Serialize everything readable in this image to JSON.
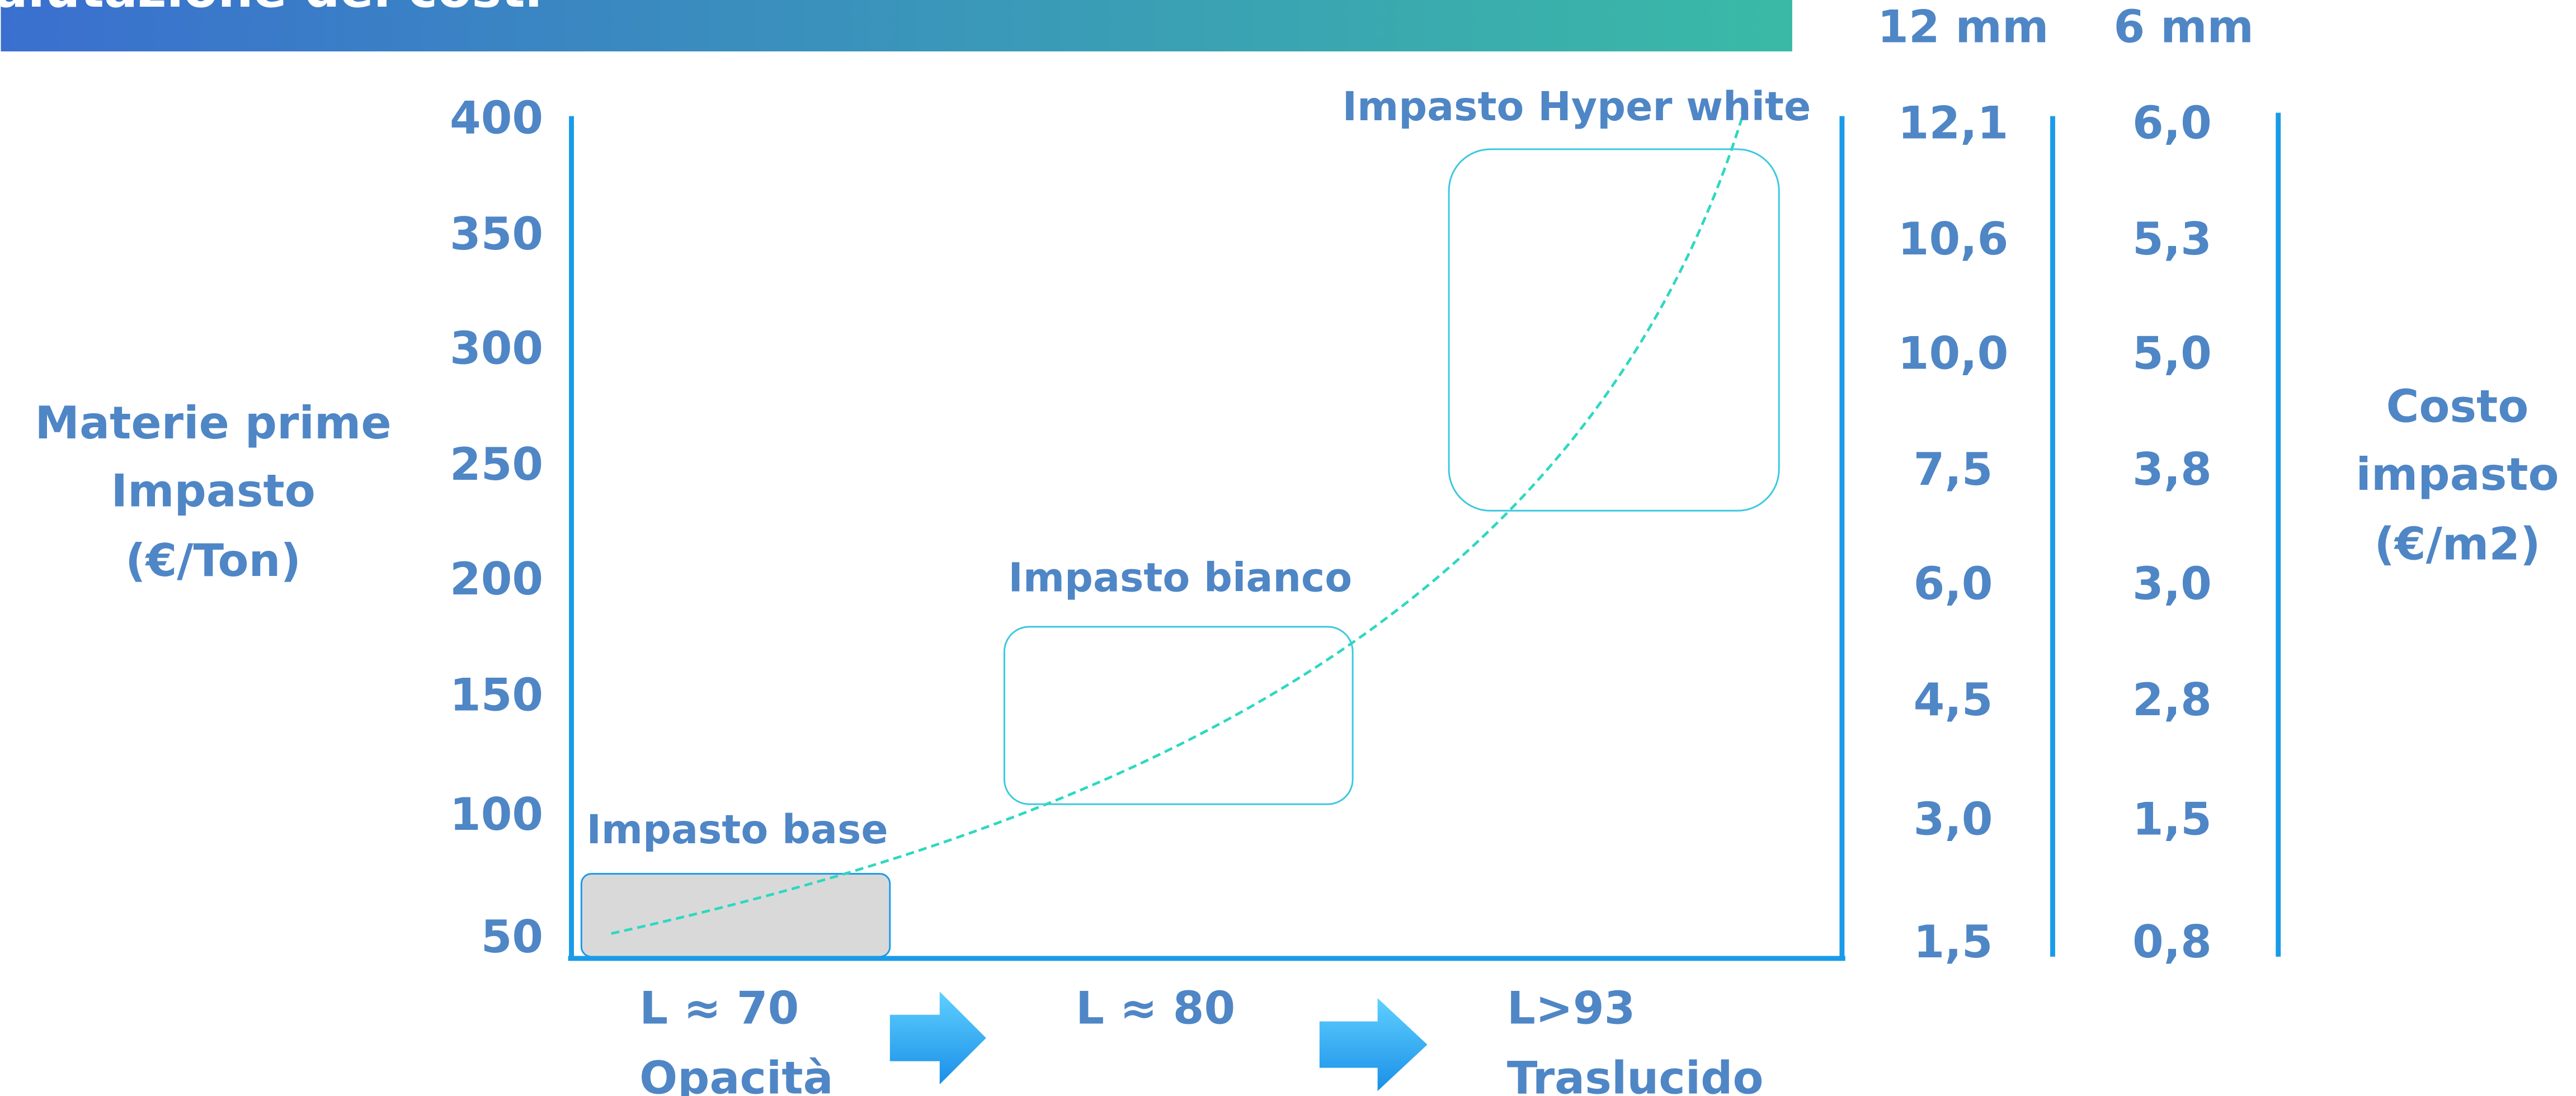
{
  "header": {
    "title": "alutazione dei costi"
  },
  "column_headers": [
    "12 mm",
    "6 mm"
  ],
  "left_label": [
    "Materie prime",
    "Impasto",
    "(€/Ton)"
  ],
  "y_labels": [
    "400",
    "350",
    "300",
    "250",
    "200",
    "150",
    "100",
    "50"
  ],
  "cost_12mm": [
    "12,1",
    "10,6",
    "10,0",
    "7,5",
    "6,0",
    "4,5",
    "3,0",
    "1,5"
  ],
  "cost_6mm": [
    "6,0",
    "5,3",
    "5,0",
    "3,8",
    "3,0",
    "2,8",
    "1,5",
    "0,8"
  ],
  "right_label": [
    "Costo",
    "impasto",
    "(€/m2)"
  ],
  "boxes": [
    "Impasto base",
    "Impasto bianco",
    "Impasto Hyper white"
  ],
  "steps": [
    {
      "lightness": "L ≈ 70",
      "label": "Opacità"
    },
    {
      "lightness": "L ≈ 80"
    },
    {
      "lightness": "L>93",
      "label": "Traslucido"
    }
  ]
}
